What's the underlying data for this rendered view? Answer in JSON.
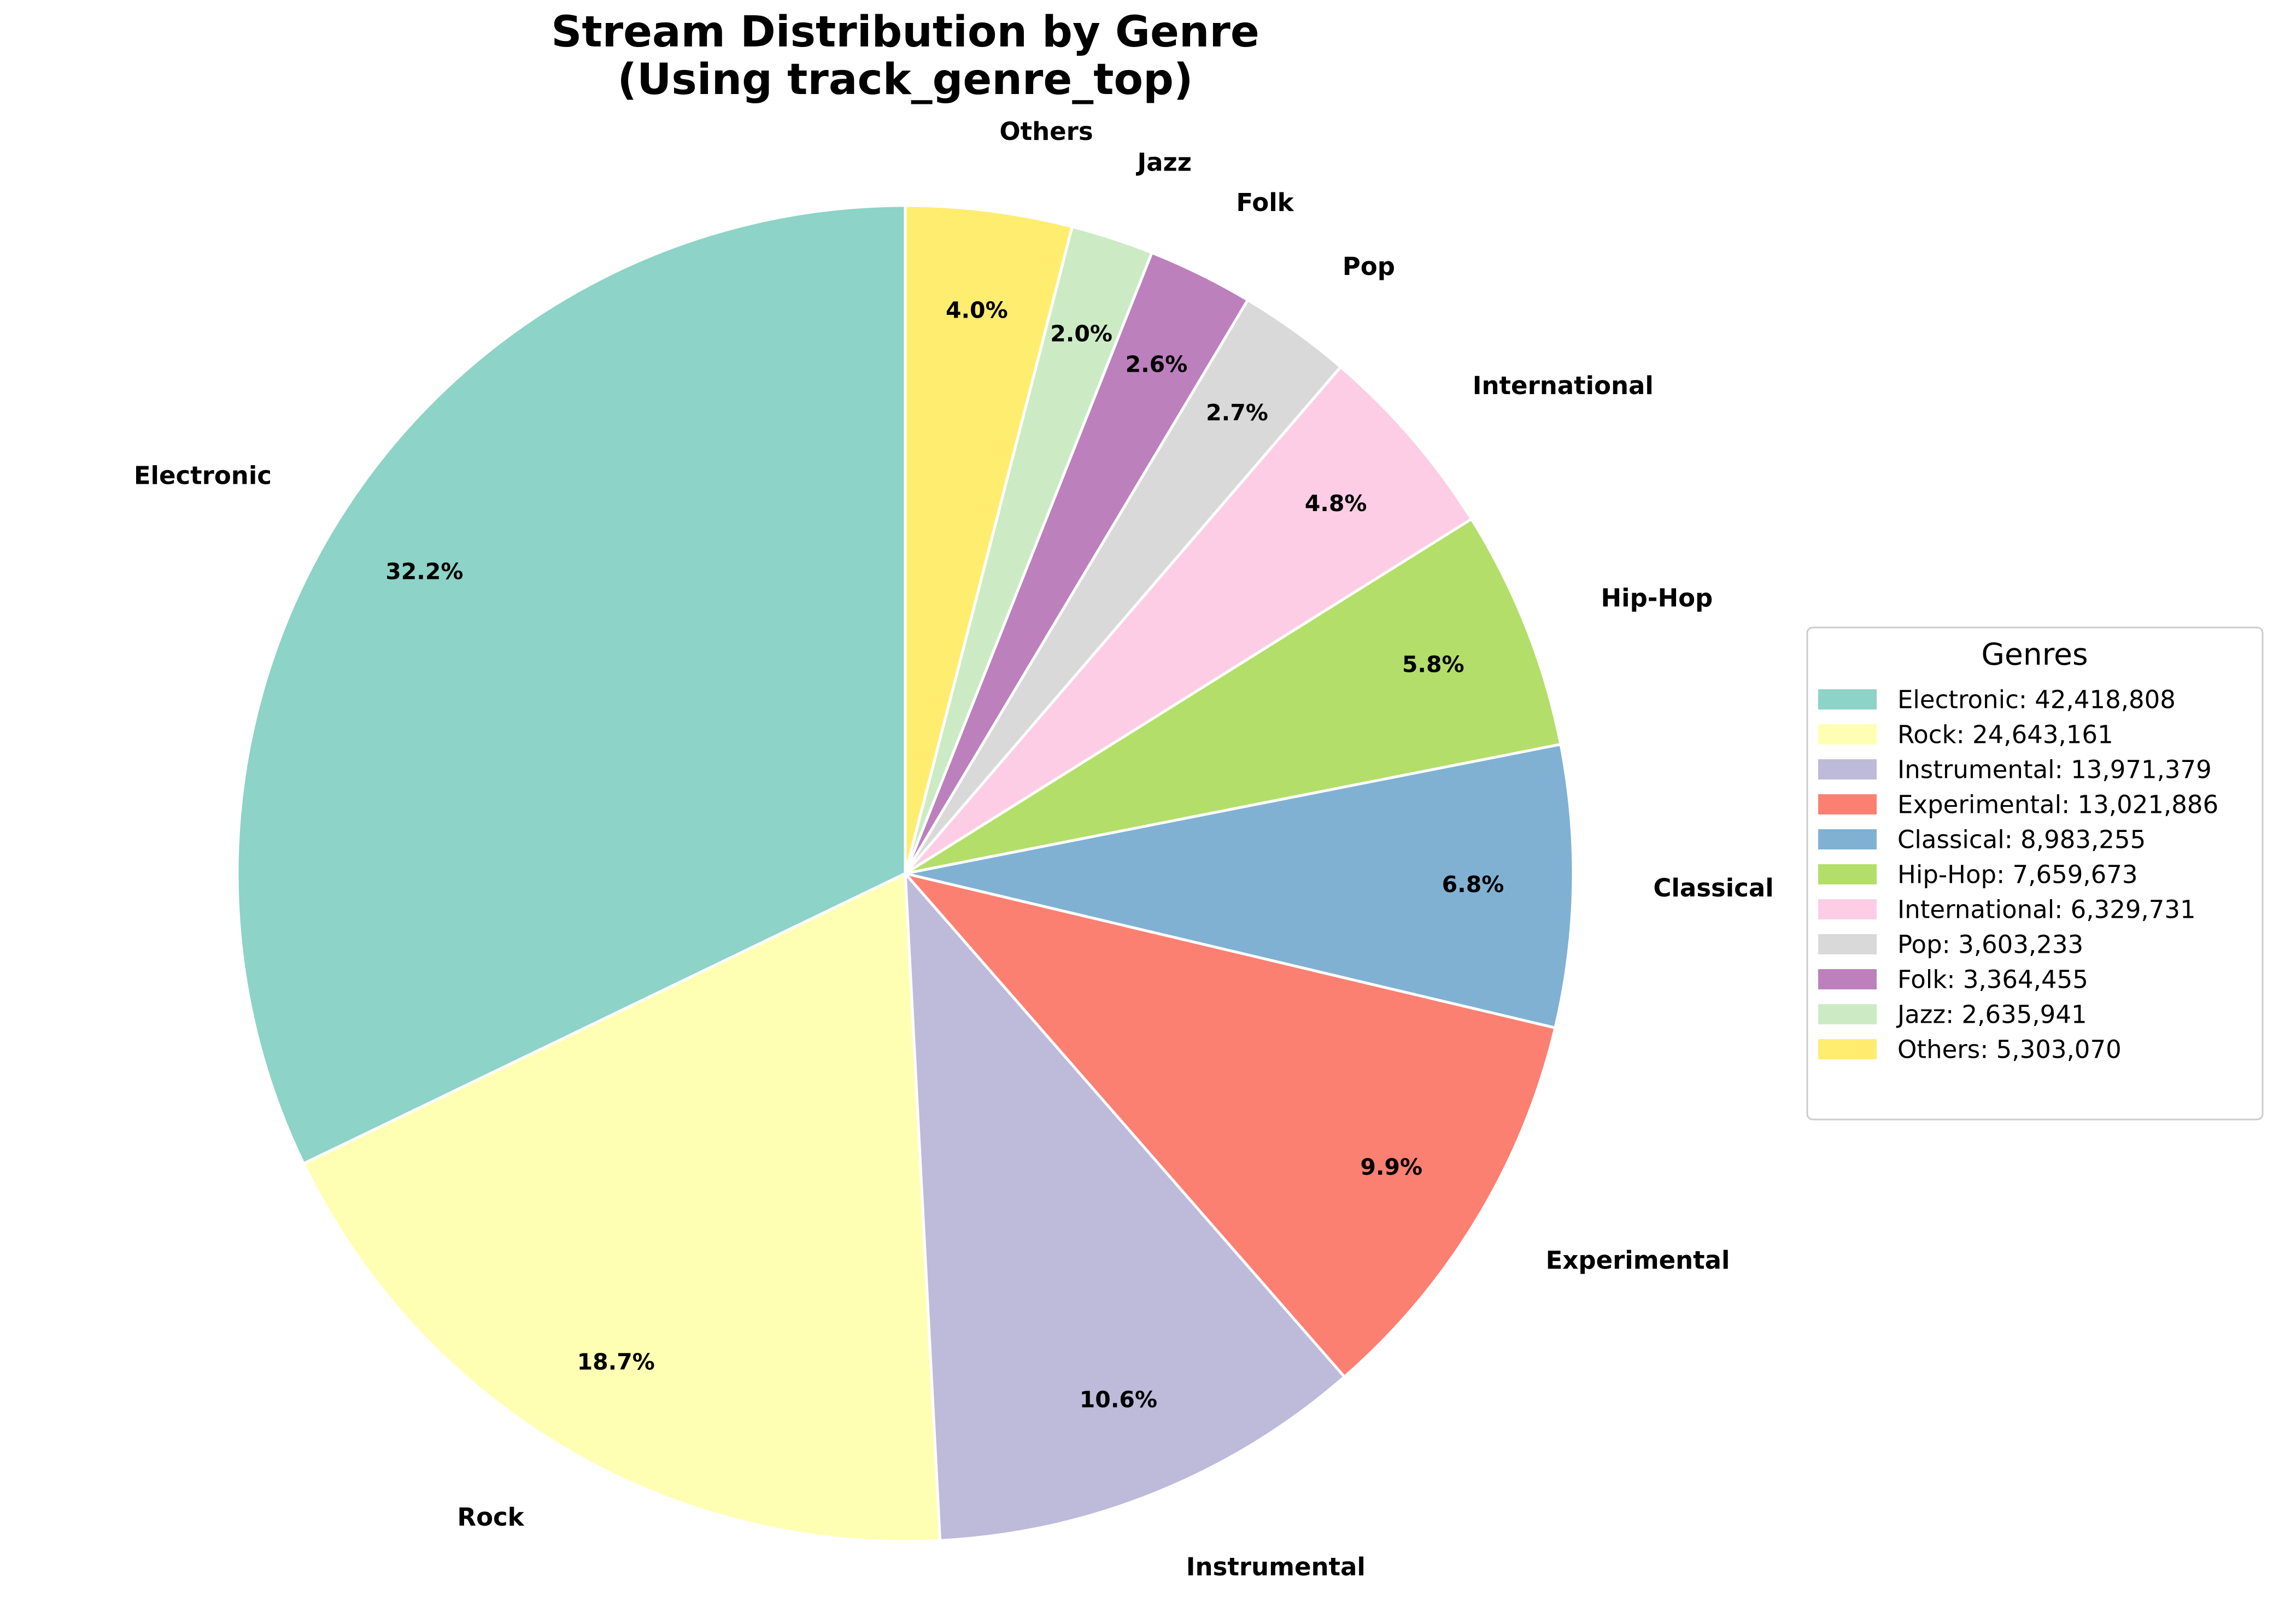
{
  "chart_data": {
    "type": "pie",
    "title": [
      "Stream Distribution by Genre",
      "(Using track_genre_top)"
    ],
    "start_angle_deg": 90,
    "direction": "counterclockwise",
    "slices": [
      {
        "label": "Electronic",
        "value": 42418808,
        "pct_label": "32.2%",
        "legend_label": "Electronic: 42,418,808",
        "color": "#8dd3c7"
      },
      {
        "label": "Rock",
        "value": 24643161,
        "pct_label": "18.7%",
        "legend_label": "Rock: 24,643,161",
        "color": "#ffffb3"
      },
      {
        "label": "Instrumental",
        "value": 13971379,
        "pct_label": "10.6%",
        "legend_label": "Instrumental: 13,971,379",
        "color": "#bebada"
      },
      {
        "label": "Experimental",
        "value": 13021886,
        "pct_label": "9.9%",
        "legend_label": "Experimental: 13,021,886",
        "color": "#fb8072"
      },
      {
        "label": "Classical",
        "value": 8983255,
        "pct_label": "6.8%",
        "legend_label": "Classical: 8,983,255",
        "color": "#80b1d3"
      },
      {
        "label": "Hip-Hop",
        "value": 7659673,
        "pct_label": "5.8%",
        "legend_label": "Hip-Hop: 7,659,673",
        "color": "#b3de69"
      },
      {
        "label": "International",
        "value": 6329731,
        "pct_label": "4.8%",
        "legend_label": "International: 6,329,731",
        "color": "#fccde5"
      },
      {
        "label": "Pop",
        "value": 3603233,
        "pct_label": "2.7%",
        "legend_label": "Pop: 3,603,233",
        "color": "#d9d9d9"
      },
      {
        "label": "Folk",
        "value": 3364455,
        "pct_label": "2.6%",
        "legend_label": "Folk: 3,364,455",
        "color": "#bc80bd"
      },
      {
        "label": "Jazz",
        "value": 2635941,
        "pct_label": "2.0%",
        "legend_label": "Jazz: 2,635,941",
        "color": "#ccebc5"
      },
      {
        "label": "Others",
        "value": 5303070,
        "pct_label": "4.0%",
        "legend_label": "Others: 5,303,070",
        "color": "#ffed6f"
      }
    ],
    "legend": {
      "title": "Genres",
      "placement": "right"
    }
  }
}
